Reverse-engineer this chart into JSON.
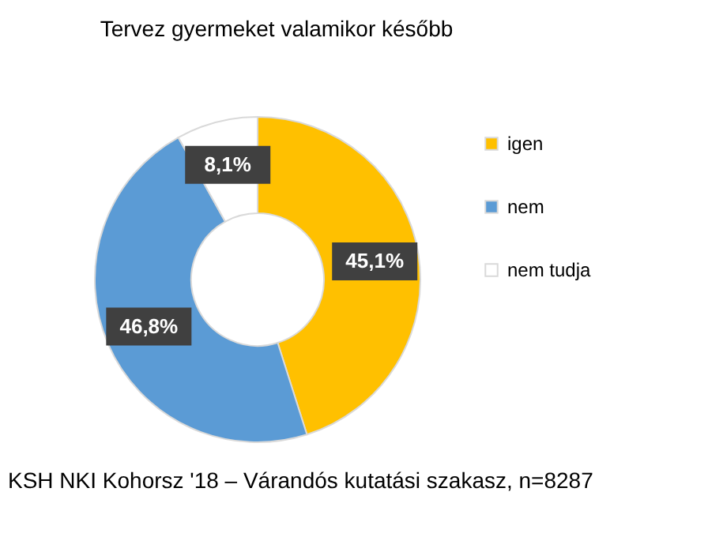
{
  "chart_data": {
    "type": "donut",
    "title": "Tervez gyermeket valamikor később",
    "categories": [
      "igen",
      "nem",
      "nem tudja"
    ],
    "values": [
      45.1,
      46.8,
      8.1
    ],
    "colors": [
      "#ffc000",
      "#5b9bd5",
      "#ffffff"
    ],
    "value_labels": [
      "45,1%",
      "46,8%",
      "8,1%"
    ],
    "legend": "right",
    "annotations": [
      "KSH NKI Kohorsz '18 – Várandós kutatási szakasz, n=8287"
    ]
  }
}
